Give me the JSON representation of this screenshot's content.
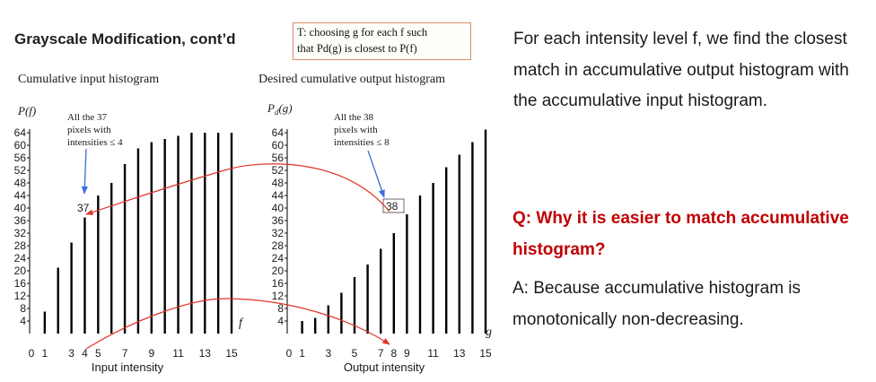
{
  "slide": {
    "title": "Grayscale Modification, cont’d",
    "transform_box": {
      "line1": "T: choosing g for each f such",
      "line2": "that Pd(g) is closest to P(f)"
    },
    "description": "For each intensity level f, we find the closest match in accumulative output histogram with the accumulative input histogram.",
    "question": "Q: Why it is easier to match accumulative histogram?",
    "answer": "A: Because accumulative histogram is monotonically non-decreasing."
  },
  "colors": {
    "bars": "#000000",
    "arrows": "#e0352b",
    "pointer": "#3a6fd8",
    "question": "#c00000"
  },
  "chart_data": [
    {
      "type": "bar",
      "title": "Cumulative input histogram",
      "ylabel": "P(f)",
      "xlabel": "Input intensity",
      "axis_var": "f",
      "x": [
        0,
        1,
        2,
        3,
        4,
        5,
        6,
        7,
        8,
        9,
        10,
        11,
        12,
        13,
        14,
        15
      ],
      "values": [
        0,
        7,
        21,
        29,
        37,
        44,
        48,
        54,
        59,
        61,
        62,
        63,
        64,
        64,
        64,
        64
      ],
      "ylim": [
        0,
        64
      ],
      "yticks": [
        4,
        8,
        12,
        16,
        20,
        24,
        28,
        32,
        36,
        40,
        44,
        48,
        52,
        56,
        60,
        64
      ],
      "xticks": [
        "0",
        "1",
        "3",
        "4",
        "5",
        "7",
        "9",
        "11",
        "13",
        "15"
      ],
      "annotation": "All the 37 pixels with intensities ≤ 4",
      "bar_label": "37"
    },
    {
      "type": "bar",
      "title": "Desired cumulative output histogram",
      "ylabel": "Pd(g)",
      "xlabel": "Output intensity",
      "axis_var": "g",
      "x": [
        0,
        1,
        2,
        3,
        4,
        5,
        6,
        7,
        8,
        9,
        10,
        11,
        12,
        13,
        14,
        15
      ],
      "values": [
        0,
        4,
        5,
        9,
        13,
        18,
        22,
        27,
        32,
        38,
        44,
        48,
        53,
        57,
        61,
        65
      ],
      "ylim": [
        0,
        64
      ],
      "yticks": [
        4,
        8,
        12,
        16,
        20,
        24,
        28,
        32,
        36,
        40,
        44,
        48,
        52,
        56,
        60,
        64
      ],
      "xticks": [
        "0",
        "1",
        "3",
        "5",
        "7",
        "8",
        "9",
        "11",
        "13",
        "15"
      ],
      "annotation": "All the 38 pixels with intensities ≤ 8",
      "bar_label": "38"
    }
  ]
}
